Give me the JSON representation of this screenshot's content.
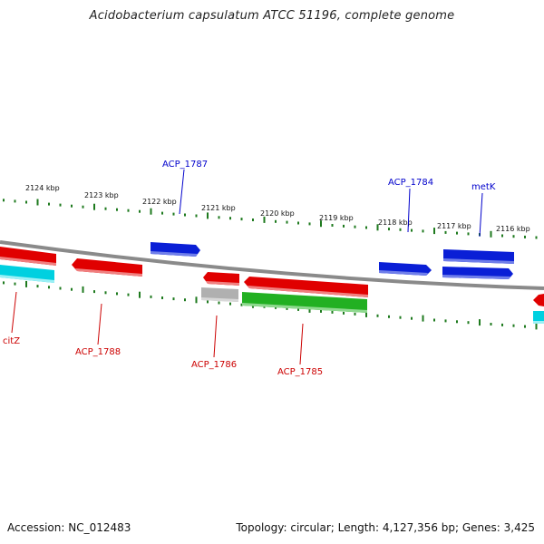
{
  "title": "Acidobacterium capsulatum ATCC 51196, complete genome",
  "accession_text": "Accession: NC_012483",
  "summary_text": "Topology: circular; Length: 4,127,356 bp; Genes: 3,425",
  "colors": {
    "backbone": "#8a8a8a",
    "tick": "#1e7a1e",
    "forward_label": "#0000cc",
    "reverse_label": "#cc0000",
    "gene_blue": "#0a1fd6",
    "gene_red": "#e00000",
    "gene_green": "#22b022",
    "gene_cyan": "#00d0e0",
    "gene_gray": "#b0b0b0"
  },
  "scale_labels": [
    "2124 kbp",
    "2123 kbp",
    "2122 kbp",
    "2121 kbp",
    "2120 kbp",
    "2119 kbp",
    "2118 kbp",
    "2117 kbp",
    "2116 kbp"
  ],
  "gene_labels": {
    "acp_1787": "ACP_1787",
    "acp_1784": "ACP_1784",
    "metk": "metK",
    "citz": "citZ",
    "acp_1788": "ACP_1788",
    "acp_1786": "ACP_1786",
    "acp_1785": "ACP_1785"
  }
}
